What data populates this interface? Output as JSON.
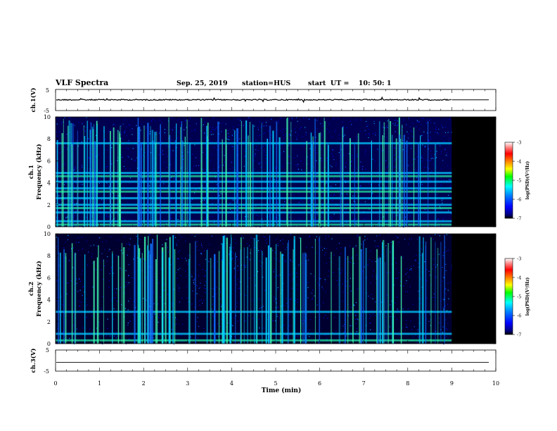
{
  "header": {
    "title": "VLF Spectra",
    "date": "Sep. 25, 2019",
    "station": "station=HUS",
    "start": "start  UT =    10: 50: 1"
  },
  "chart_data": [
    {
      "type": "line",
      "panel": "ch1-waveform",
      "ylabel": "ch.1(V)",
      "yticks": [
        "5",
        "-5"
      ],
      "ylim": [
        -5,
        5
      ],
      "x_extent_min": [
        0,
        9
      ],
      "baseline_value": 0.1
    },
    {
      "type": "heatmap",
      "panel": "ch1-spectrogram",
      "ylabel_line1": "ch.1",
      "ylabel_line2": "Frequency  (kHz)",
      "ylim": [
        0,
        10
      ],
      "yticks": [
        "0",
        "2",
        "4",
        "6",
        "8",
        "10"
      ],
      "xlim": [
        0,
        9.8
      ],
      "data_end_min": 9.0,
      "colorbar": {
        "label": "log(PSD)(V²/Hz)",
        "ticks": [
          "-3",
          "-4",
          "-5",
          "-6",
          "-7"
        ],
        "range": [
          -7,
          -3
        ]
      },
      "bright_bands_khz": [
        0.2,
        0.5,
        1.3,
        1.7,
        2.0,
        2.6,
        3.2,
        3.5,
        4.1,
        4.6,
        4.9,
        7.6
      ]
    },
    {
      "type": "heatmap",
      "panel": "ch2-spectrogram",
      "ylabel_line1": "ch.2",
      "ylabel_line2": "Frequency  (kHz)",
      "ylim": [
        0,
        10
      ],
      "yticks": [
        "0",
        "2",
        "4",
        "6",
        "8",
        "10"
      ],
      "xlim": [
        0,
        9.8
      ],
      "data_end_min": 9.0,
      "colorbar": {
        "label": "log(PSD)(V²/Hz)",
        "ticks": [
          "-3",
          "-4",
          "-5",
          "-6",
          "-7"
        ],
        "range": [
          -7,
          -3
        ]
      },
      "bright_bands_khz": [
        0.3,
        0.9,
        2.9
      ]
    },
    {
      "type": "line",
      "panel": "ch3-waveform",
      "ylabel": "ch.3(V)",
      "yticks": [
        "5",
        "-5"
      ],
      "ylim": [
        -5,
        5
      ],
      "baseline_value": -0.8
    }
  ],
  "x_axis": {
    "label": "Time  (min)",
    "ticks": [
      "0",
      "1",
      "2",
      "3",
      "4",
      "5",
      "6",
      "7",
      "8",
      "9",
      "10"
    ],
    "xlim": [
      0,
      10
    ]
  },
  "colors": {
    "background": "#000000",
    "colormap": [
      "#000080",
      "#0000ff",
      "#0080ff",
      "#00ffff",
      "#00ff80",
      "#00ff00",
      "#ffff00",
      "#ff8000",
      "#ff0000",
      "#ff8080",
      "#ffffff"
    ]
  }
}
